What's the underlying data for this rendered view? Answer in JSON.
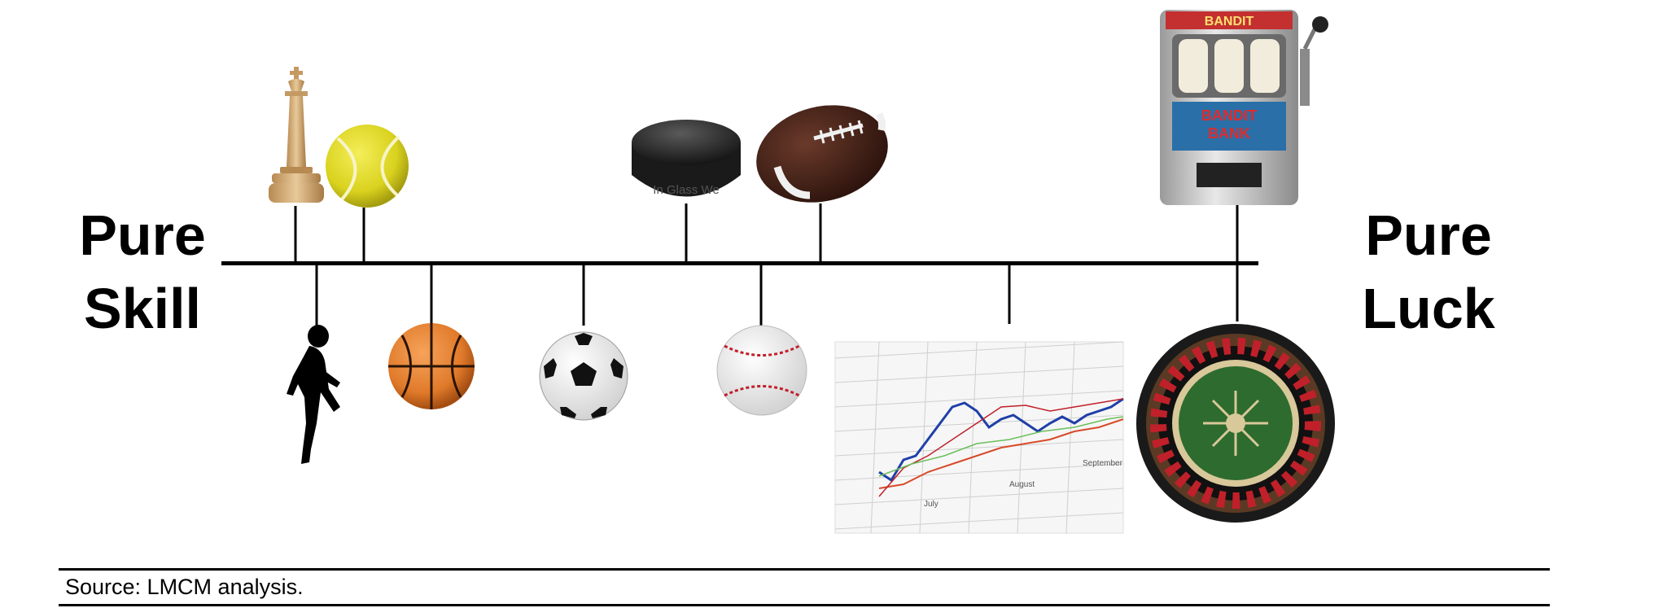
{
  "labels": {
    "left_line1": "Pure",
    "left_line2": "Skill",
    "right_line1": "Pure",
    "right_line2": "Luck"
  },
  "continuum": {
    "above": [
      "chess-king",
      "tennis-ball",
      "hockey-puck",
      "football",
      "slot-machine"
    ],
    "below": [
      "runner",
      "basketball",
      "soccer-ball",
      "baseball",
      "stock-chart",
      "roulette-wheel"
    ]
  },
  "slot_machine": {
    "top_text": "BANDIT",
    "panel_text_line1": "BANDIT",
    "panel_text_line2": "BANK"
  },
  "hockey_puck": {
    "text": "In Glass We"
  },
  "stock_chart": {
    "axis_labels": [
      "July",
      "August",
      "September"
    ]
  },
  "source": "Source: LMCM analysis.",
  "colors": {
    "line": "#000000",
    "tennis_ball": "#d9d21e",
    "basketball": "#e07a2a",
    "roulette_green": "#2e6b2e",
    "roulette_red": "#c0202a"
  }
}
